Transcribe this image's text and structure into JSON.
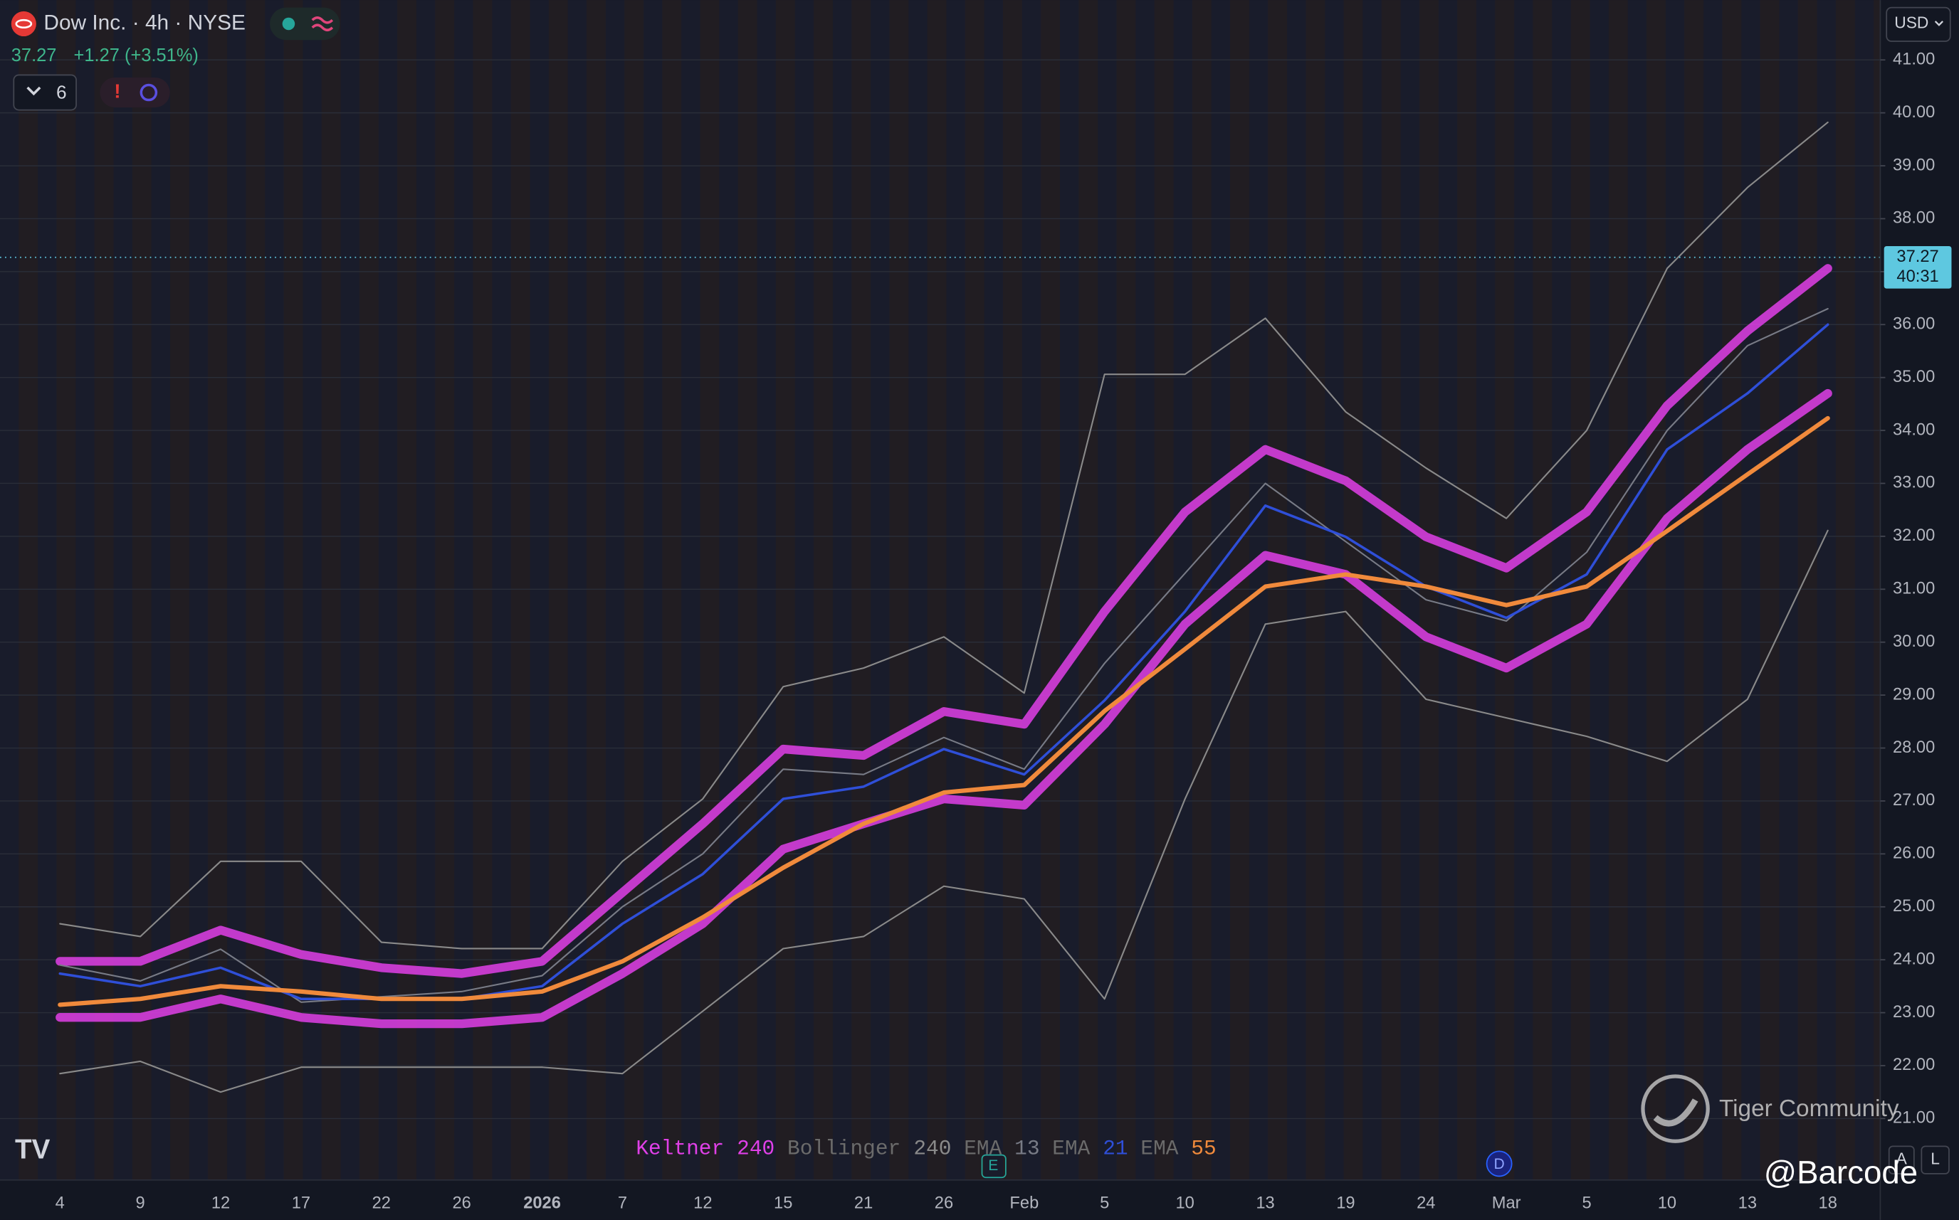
{
  "chart_data": {
    "type": "line",
    "symbol": "Dow Inc. · 4h · NYSE",
    "last_price": 37.27,
    "change": "+1.27 (+3.51%)",
    "indicator_count": 6,
    "currency": "USD",
    "countdown": "40:31",
    "categories": [
      "4",
      "9",
      "12",
      "17",
      "22",
      "26",
      "2026",
      "7",
      "12",
      "15",
      "21",
      "26",
      "Feb",
      "5",
      "10",
      "13",
      "19",
      "24",
      "Mar",
      "5",
      "10",
      "13",
      "18"
    ],
    "series": [
      {
        "name": "Keltner",
        "param": 240,
        "color": "#e040e8",
        "label_color": "#e040e8",
        "upper": [
          23.97,
          23.97,
          24.56,
          24.1,
          23.85,
          23.74,
          23.97,
          25.27,
          26.57,
          27.98,
          27.86,
          28.69,
          28.45,
          30.58,
          32.46,
          33.64,
          33.05,
          31.99,
          31.4,
          32.46,
          34.47,
          35.88,
          37.06
        ],
        "lower": [
          22.91,
          22.91,
          23.26,
          22.91,
          22.79,
          22.79,
          22.91,
          23.74,
          24.68,
          26.09,
          26.57,
          27.04,
          26.92,
          28.45,
          30.34,
          31.64,
          31.28,
          30.1,
          29.51,
          30.34,
          32.34,
          33.64,
          34.7
        ]
      },
      {
        "name": "Bollinger",
        "param": 240,
        "color": "#8a8a8a",
        "label_color": "#6b6b6b",
        "upper": [
          24.68,
          24.44,
          25.86,
          25.86,
          24.33,
          24.21,
          24.21,
          25.86,
          27.04,
          29.16,
          29.51,
          30.1,
          29.04,
          35.06,
          35.06,
          36.12,
          34.35,
          33.29,
          32.34,
          34.0,
          37.06,
          38.59,
          39.82
        ],
        "lower": [
          21.85,
          22.08,
          21.5,
          21.97,
          21.97,
          21.97,
          21.97,
          21.85,
          23.03,
          24.21,
          24.44,
          25.39,
          25.15,
          23.26,
          27.04,
          30.34,
          30.58,
          28.92,
          28.57,
          28.22,
          27.75,
          28.92,
          32.11
        ]
      },
      {
        "name": "EMA",
        "param": 13,
        "color": "#787b86",
        "label_color": "#6b6b6b",
        "values": [
          23.9,
          23.6,
          24.2,
          23.2,
          23.3,
          23.4,
          23.7,
          25.0,
          26.0,
          27.6,
          27.5,
          28.2,
          27.6,
          29.6,
          31.3,
          33.0,
          31.9,
          30.8,
          30.4,
          31.7,
          34.0,
          35.6,
          36.3
        ]
      },
      {
        "name": "EMA",
        "param": 21,
        "color": "#2f4fd8",
        "label_color": "#6b6b6b",
        "values": [
          23.74,
          23.5,
          23.85,
          23.26,
          23.26,
          23.26,
          23.5,
          24.68,
          25.62,
          27.04,
          27.27,
          27.98,
          27.5,
          28.9,
          30.58,
          32.58,
          31.99,
          31.05,
          30.46,
          31.28,
          33.64,
          34.7,
          36.0
        ]
      },
      {
        "name": "EMA",
        "param": 55,
        "color": "#f08a3c",
        "label_color": "#6b6b6b",
        "values": [
          23.15,
          23.26,
          23.5,
          23.4,
          23.26,
          23.26,
          23.4,
          23.97,
          24.8,
          25.74,
          26.57,
          27.16,
          27.3,
          28.7,
          29.87,
          31.05,
          31.28,
          31.05,
          30.7,
          31.05,
          32.1,
          33.17,
          34.23
        ]
      }
    ],
    "ylim": [
      19.84,
      42.13
    ],
    "yticks": [
      {
        "value": 21,
        "label": "21.00"
      },
      {
        "value": 22,
        "label": "22.00"
      },
      {
        "value": 23,
        "label": "23.00"
      },
      {
        "value": 24,
        "label": "24.00"
      },
      {
        "value": 25,
        "label": "25.00"
      },
      {
        "value": 26,
        "label": "26.00"
      },
      {
        "value": 27,
        "label": "27.00"
      },
      {
        "value": 28,
        "label": "28.00"
      },
      {
        "value": 29,
        "label": "29.00"
      },
      {
        "value": 30,
        "label": "30.00"
      },
      {
        "value": 31,
        "label": "31.00"
      },
      {
        "value": 32,
        "label": "32.00"
      },
      {
        "value": 33,
        "label": "33.00"
      },
      {
        "value": 34,
        "label": "34.00"
      },
      {
        "value": 35,
        "label": "35.00"
      },
      {
        "value": 36,
        "label": "36.00"
      },
      {
        "value": 37,
        "label": "37.00"
      },
      {
        "value": 38,
        "label": "38.00"
      },
      {
        "value": 39,
        "label": "39.00"
      },
      {
        "value": 40,
        "label": "40.00"
      },
      {
        "value": 41,
        "label": "41.00"
      }
    ],
    "grid": true,
    "markers": {
      "earnings": "E",
      "dividend": "D"
    },
    "scale_buttons": [
      "A",
      "L"
    ],
    "watermark": "Tiger Community",
    "credit": "@Barcode"
  }
}
